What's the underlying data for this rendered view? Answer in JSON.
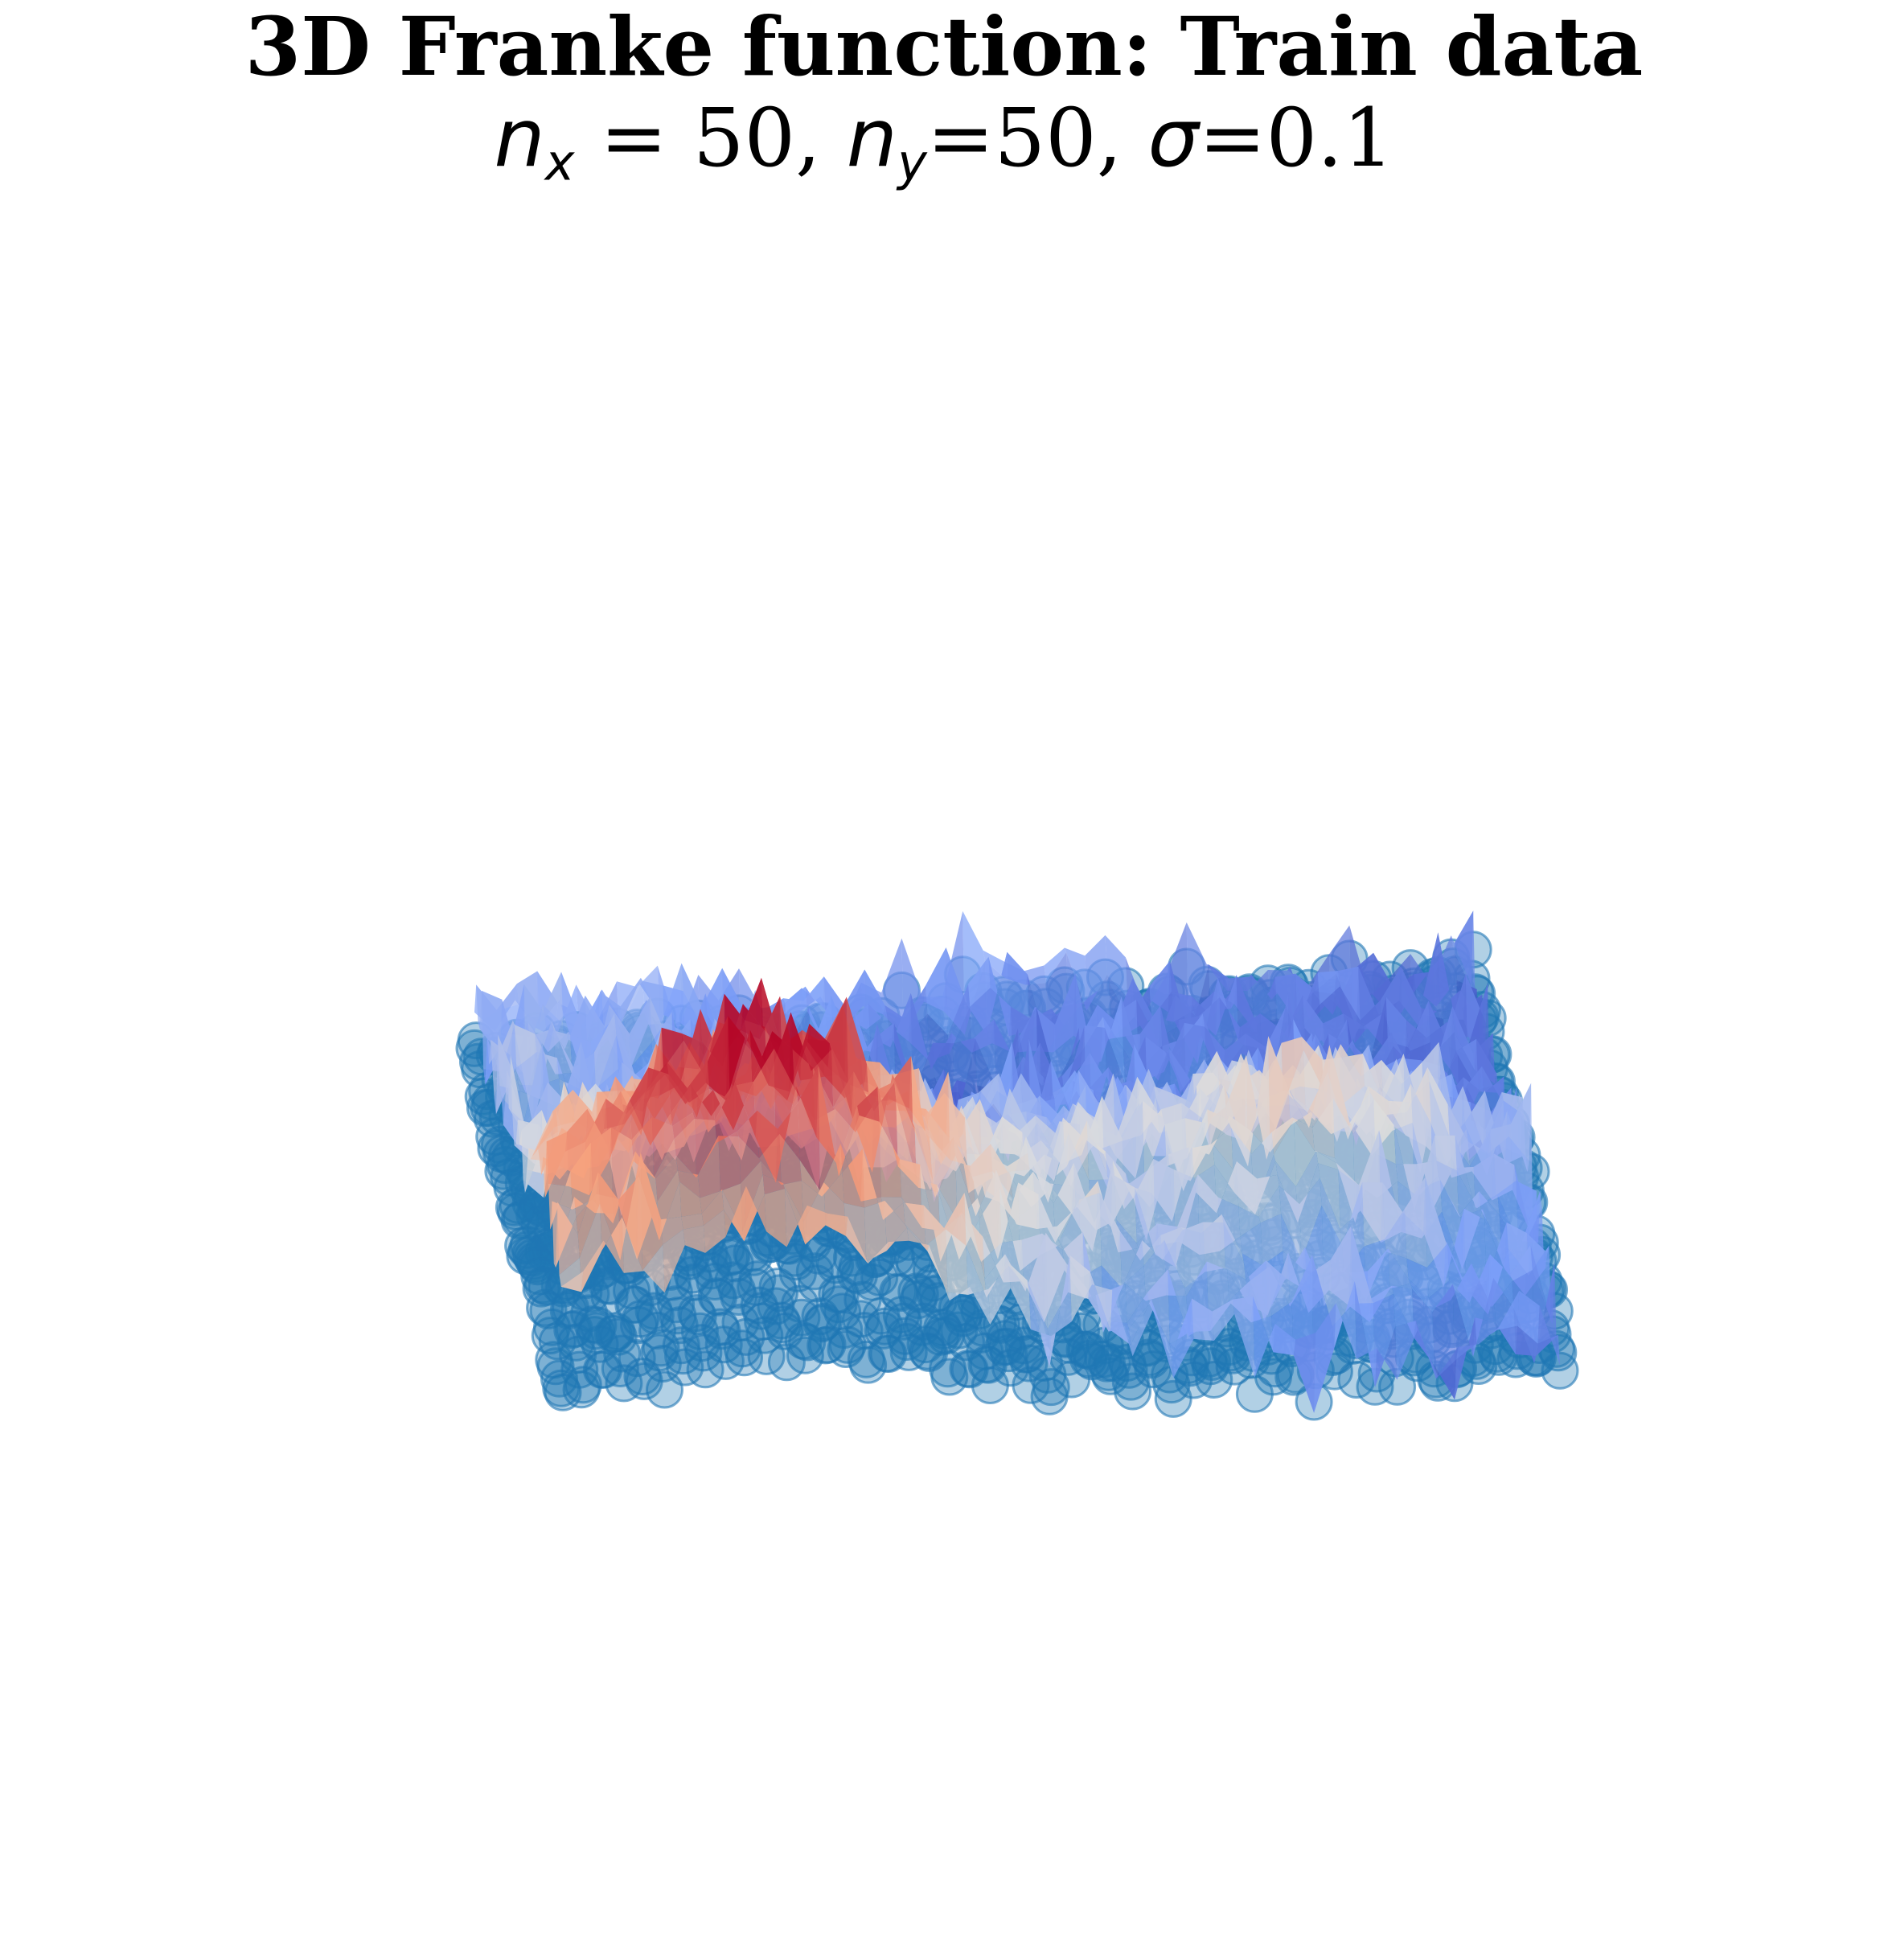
{
  "chart_data": {
    "type": "surface3d",
    "title": "3D Franke function: Train data",
    "subtitle": {
      "nx_symbol": "n",
      "nx_sub": "x",
      "nx_eq": " = 50, ",
      "ny_symbol": "n",
      "ny_sub": "y",
      "ny_eq": "=50, ",
      "sigma_symbol": "σ",
      "sigma_eq": "=0.1"
    },
    "function": "Franke",
    "nx": 50,
    "ny": 50,
    "sigma": 0.1,
    "x_range": [
      0,
      1
    ],
    "y_range": [
      0,
      1
    ],
    "z_range": [
      -0.2,
      1.4
    ],
    "axes_visible": false,
    "grid": false,
    "surface_colormap": "coolwarm",
    "surface_alpha": 0.7,
    "scatter_color": "#1f77b4",
    "scatter_alpha": 0.5
  }
}
